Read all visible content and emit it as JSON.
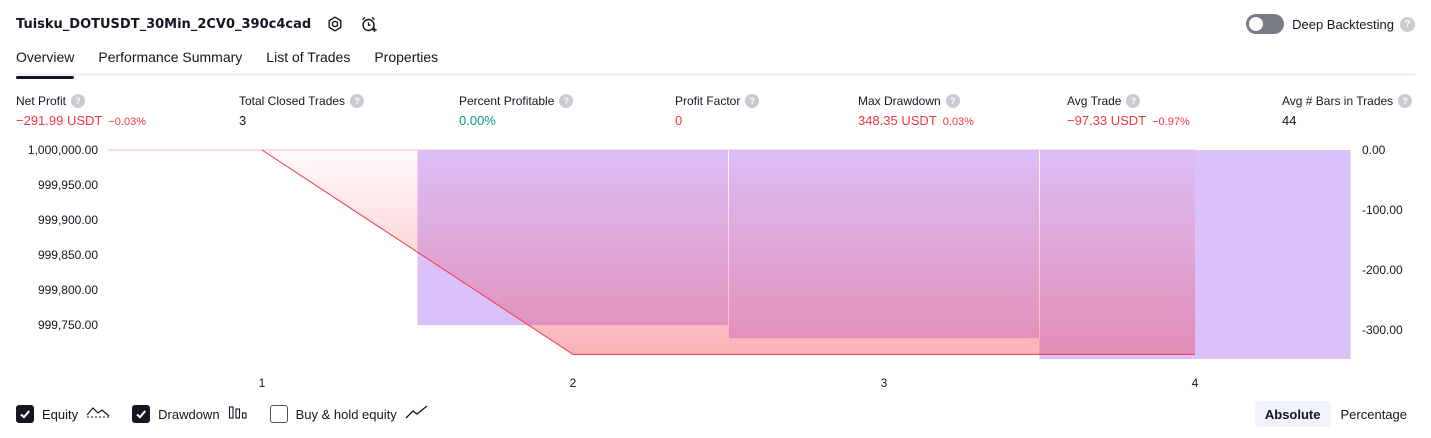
{
  "header": {
    "strategy_name": "Tuisku_DOTUSDT_30Min_2CV0_390c4cad",
    "settings_icon": "settings-icon",
    "alert_icon": "add-alert-icon",
    "deep_backtesting_label": "Deep Backtesting",
    "deep_backtesting_enabled": false,
    "help_glyph": "?"
  },
  "tabs": [
    {
      "label": "Overview",
      "active": true
    },
    {
      "label": "Performance Summary",
      "active": false
    },
    {
      "label": "List of Trades",
      "active": false
    },
    {
      "label": "Properties",
      "active": false
    }
  ],
  "metrics": {
    "net_profit": {
      "label": "Net Profit",
      "value": "−291.99 USDT",
      "pct": "−0.03%"
    },
    "total_closed_trades": {
      "label": "Total Closed Trades",
      "value": "3"
    },
    "percent_profitable": {
      "label": "Percent Profitable",
      "value": "0.00%"
    },
    "profit_factor": {
      "label": "Profit Factor",
      "value": "0"
    },
    "max_drawdown": {
      "label": "Max Drawdown",
      "value": "348.35 USDT",
      "pct": "0.03%"
    },
    "avg_trade": {
      "label": "Avg Trade",
      "value": "−97.33 USDT",
      "pct": "−0.97%"
    },
    "avg_bars": {
      "label": "Avg # Bars in Trades",
      "value": "44"
    }
  },
  "chart_data": {
    "type": "area",
    "x_ticks": [
      "1",
      "2",
      "3",
      "4"
    ],
    "left_axis": {
      "ticks": [
        "1,000,000.00",
        "999,950.00",
        "999,900.00",
        "999,850.00",
        "999,800.00",
        "999,750.00"
      ],
      "ylim": [
        999700,
        1000000
      ]
    },
    "right_axis": {
      "ticks": [
        "0.00",
        "-100.00",
        "-200.00",
        "-300.00"
      ],
      "ylim": [
        -350,
        0
      ]
    },
    "series": [
      {
        "name": "Equity",
        "x": [
          1,
          2,
          3,
          4
        ],
        "values": [
          1000000.0,
          999708.01,
          999708.01,
          999708.01
        ],
        "color": "#f23645"
      },
      {
        "name": "Drawdown",
        "bars": [
          {
            "from": 1.5,
            "to": 2.5,
            "value": -291.99
          },
          {
            "from": 2.5,
            "to": 3.5,
            "value": -313.5
          },
          {
            "from": 3.5,
            "to": 4.0,
            "value": -348.35
          },
          {
            "from": 4.0,
            "to": 4.5,
            "value": -348.35
          }
        ],
        "color": "#c59bf7"
      }
    ],
    "colors": {
      "equity": "#f23645",
      "drawdown": "#c59bf7",
      "grid": "#e0e3eb"
    }
  },
  "legend": [
    {
      "label": "Equity",
      "checked": true,
      "icon": "equity-line-icon"
    },
    {
      "label": "Drawdown",
      "checked": true,
      "icon": "drawdown-bars-icon"
    },
    {
      "label": "Buy & hold equity",
      "checked": false,
      "icon": "buy-hold-line-icon"
    }
  ],
  "scale_toggle": [
    {
      "label": "Absolute",
      "active": true
    },
    {
      "label": "Percentage",
      "active": false
    }
  ]
}
